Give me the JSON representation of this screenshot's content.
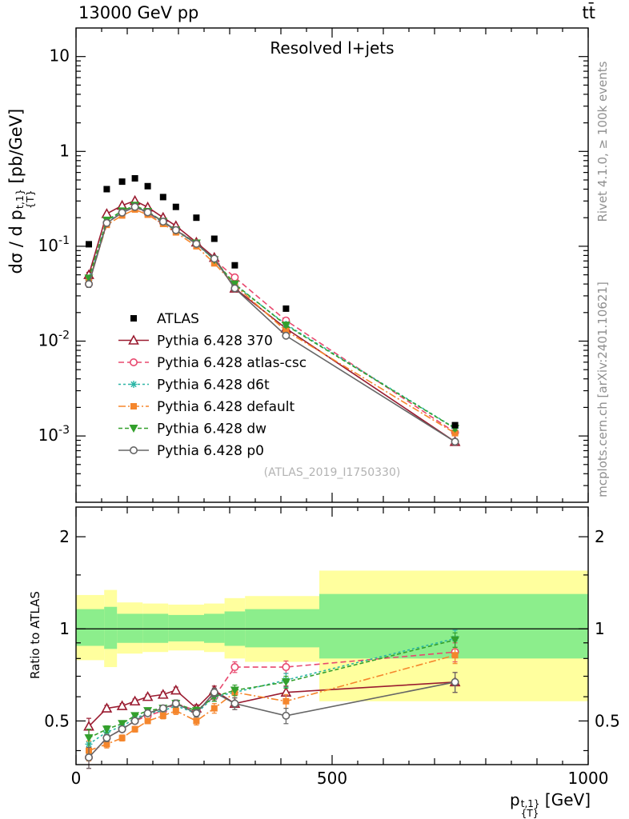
{
  "header": {
    "left": "13000 GeV pp",
    "right": "tt̄"
  },
  "panel_title": "Resolved l+jets",
  "watermark": "(ATLAS_2019_I1750330)",
  "side_captions": {
    "top_right": "Rivet 4.1.0, ≥ 100k events",
    "bottom_right": "mcplots.cern.ch [arXiv:2401.10621]"
  },
  "axes": {
    "ylabel_top": {
      "prefix": "dσ / d p",
      "sup": "t,1}",
      "sub": "{T}",
      "suffix": " [pb/GeV]"
    },
    "ylabel_ratio": "Ratio to ATLAS",
    "xlabel": {
      "prefix": "p",
      "sup": "t,1}",
      "sub": "{T}",
      "suffix": " [GeV]"
    },
    "x_ticks": [
      {
        "value": 0,
        "label": "0"
      },
      {
        "value": 500,
        "label": "500"
      },
      {
        "value": 1000,
        "label": "1000"
      }
    ],
    "y_ticks_top": [
      {
        "value": 10,
        "base": "10",
        "exp": ""
      },
      {
        "value": 1,
        "base": "1",
        "exp": ""
      },
      {
        "value": 0.1,
        "base": "10",
        "exp": "-1"
      },
      {
        "value": 0.01,
        "base": "10",
        "exp": "-2"
      },
      {
        "value": 0.001,
        "base": "10",
        "exp": "-3"
      }
    ],
    "y_ticks_ratio": [
      {
        "value": 2,
        "label": "2"
      },
      {
        "value": 1,
        "label": "1"
      },
      {
        "value": 0.5,
        "label": "0.5"
      }
    ]
  },
  "chart_data": {
    "type": "line",
    "xlim": [
      0,
      1000
    ],
    "ylim_top": [
      0.0002,
      20
    ],
    "ylim_ratio": [
      0.36,
      2.5
    ],
    "x": [
      25,
      60,
      90,
      115,
      140,
      170,
      195,
      235,
      270,
      310,
      410,
      740
    ],
    "reference": {
      "name": "ATLAS",
      "color": "#000000",
      "marker": "square-filled",
      "xsec": [
        0.105,
        0.4,
        0.48,
        0.52,
        0.43,
        0.33,
        0.26,
        0.2,
        0.12,
        0.063,
        0.022,
        0.0013
      ]
    },
    "series": [
      {
        "name": "Pythia 6.428 370",
        "color": "#9a1b30",
        "line": "solid",
        "marker": "triangle-open",
        "xsec": [
          0.05,
          0.22,
          0.269,
          0.302,
          0.258,
          0.201,
          0.164,
          0.11,
          0.076,
          0.036,
          0.0136,
          0.00087
        ],
        "ratio": [
          0.48,
          0.55,
          0.56,
          0.58,
          0.6,
          0.61,
          0.63,
          0.55,
          0.63,
          0.57,
          0.62,
          0.67
        ],
        "ratio_err": [
          0.03,
          0.012,
          0.01,
          0.01,
          0.01,
          0.012,
          0.015,
          0.015,
          0.02,
          0.025,
          0.03,
          0.05
        ]
      },
      {
        "name": "Pythia 6.428 atlas-csc",
        "color": "#e8486e",
        "line": "dash",
        "marker": "circle-open",
        "xsec": [
          0.04,
          0.176,
          0.226,
          0.26,
          0.224,
          0.178,
          0.148,
          0.108,
          0.072,
          0.047,
          0.0165,
          0.00109
        ],
        "ratio": [
          0.38,
          0.44,
          0.47,
          0.5,
          0.52,
          0.54,
          0.57,
          0.54,
          0.6,
          0.75,
          0.75,
          0.84
        ],
        "ratio_err": [
          0.03,
          0.012,
          0.01,
          0.01,
          0.01,
          0.012,
          0.015,
          0.015,
          0.02,
          0.03,
          0.035,
          0.06
        ]
      },
      {
        "name": "Pythia 6.428 d6t",
        "color": "#2ab5a5",
        "line": "shortdash",
        "marker": "star",
        "xsec": [
          0.044,
          0.184,
          0.23,
          0.265,
          0.228,
          0.178,
          0.146,
          0.106,
          0.072,
          0.039,
          0.015,
          0.00121
        ],
        "ratio": [
          0.42,
          0.46,
          0.48,
          0.51,
          0.53,
          0.54,
          0.56,
          0.53,
          0.6,
          0.62,
          0.68,
          0.93
        ],
        "ratio_err": [
          0.03,
          0.012,
          0.01,
          0.01,
          0.01,
          0.012,
          0.015,
          0.015,
          0.02,
          0.025,
          0.035,
          0.06
        ]
      },
      {
        "name": "Pythia 6.428 default",
        "color": "#f5862c",
        "line": "dashdot",
        "marker": "square-filled",
        "xsec": [
          0.042,
          0.168,
          0.211,
          0.244,
          0.215,
          0.172,
          0.14,
          0.1,
          0.066,
          0.039,
          0.0128,
          0.00107
        ],
        "ratio": [
          0.4,
          0.42,
          0.44,
          0.47,
          0.5,
          0.52,
          0.54,
          0.5,
          0.55,
          0.62,
          0.58,
          0.82
        ],
        "ratio_err": [
          0.03,
          0.012,
          0.01,
          0.01,
          0.01,
          0.012,
          0.015,
          0.015,
          0.02,
          0.025,
          0.03,
          0.05
        ]
      },
      {
        "name": "Pythia 6.428 dw",
        "color": "#33a02c",
        "line": "meddash",
        "marker": "triangle-down-filled",
        "xsec": [
          0.046,
          0.188,
          0.235,
          0.27,
          0.232,
          0.182,
          0.148,
          0.108,
          0.072,
          0.04,
          0.0147,
          0.0012
        ],
        "ratio": [
          0.44,
          0.47,
          0.49,
          0.52,
          0.54,
          0.55,
          0.57,
          0.54,
          0.6,
          0.63,
          0.67,
          0.92
        ],
        "ratio_err": [
          0.03,
          0.012,
          0.01,
          0.01,
          0.01,
          0.012,
          0.015,
          0.015,
          0.02,
          0.025,
          0.03,
          0.05
        ]
      },
      {
        "name": "Pythia 6.428 p0",
        "color": "#666666",
        "line": "solid",
        "marker": "circle-open",
        "xsec": [
          0.04,
          0.176,
          0.226,
          0.26,
          0.228,
          0.182,
          0.148,
          0.106,
          0.074,
          0.036,
          0.0114,
          0.00087
        ],
        "ratio": [
          0.38,
          0.44,
          0.47,
          0.5,
          0.53,
          0.55,
          0.57,
          0.53,
          0.62,
          0.57,
          0.52,
          0.67
        ],
        "ratio_err": [
          0.03,
          0.012,
          0.01,
          0.01,
          0.01,
          0.012,
          0.015,
          0.015,
          0.02,
          0.025,
          0.03,
          0.05
        ]
      }
    ],
    "bands": {
      "yellow": {
        "color": "#ffff9e",
        "steps": [
          {
            "x0": 0,
            "x1": 55,
            "lo": 0.79,
            "hi": 1.29
          },
          {
            "x0": 55,
            "x1": 80,
            "lo": 0.75,
            "hi": 1.34
          },
          {
            "x0": 80,
            "x1": 130,
            "lo": 0.83,
            "hi": 1.22
          },
          {
            "x0": 130,
            "x1": 180,
            "lo": 0.84,
            "hi": 1.21
          },
          {
            "x0": 180,
            "x1": 250,
            "lo": 0.85,
            "hi": 1.2
          },
          {
            "x0": 250,
            "x1": 290,
            "lo": 0.84,
            "hi": 1.21
          },
          {
            "x0": 290,
            "x1": 330,
            "lo": 0.8,
            "hi": 1.26
          },
          {
            "x0": 330,
            "x1": 475,
            "lo": 0.78,
            "hi": 1.28
          },
          {
            "x0": 475,
            "x1": 1000,
            "lo": 0.58,
            "hi": 1.55
          }
        ]
      },
      "green": {
        "color": "#8cee8c",
        "steps": [
          {
            "x0": 0,
            "x1": 55,
            "lo": 0.88,
            "hi": 1.16
          },
          {
            "x0": 55,
            "x1": 80,
            "lo": 0.86,
            "hi": 1.18
          },
          {
            "x0": 80,
            "x1": 130,
            "lo": 0.9,
            "hi": 1.12
          },
          {
            "x0": 130,
            "x1": 180,
            "lo": 0.9,
            "hi": 1.12
          },
          {
            "x0": 180,
            "x1": 250,
            "lo": 0.91,
            "hi": 1.11
          },
          {
            "x0": 250,
            "x1": 290,
            "lo": 0.9,
            "hi": 1.12
          },
          {
            "x0": 290,
            "x1": 330,
            "lo": 0.88,
            "hi": 1.14
          },
          {
            "x0": 330,
            "x1": 475,
            "lo": 0.87,
            "hi": 1.16
          },
          {
            "x0": 475,
            "x1": 1000,
            "lo": 0.8,
            "hi": 1.3
          }
        ]
      }
    }
  }
}
